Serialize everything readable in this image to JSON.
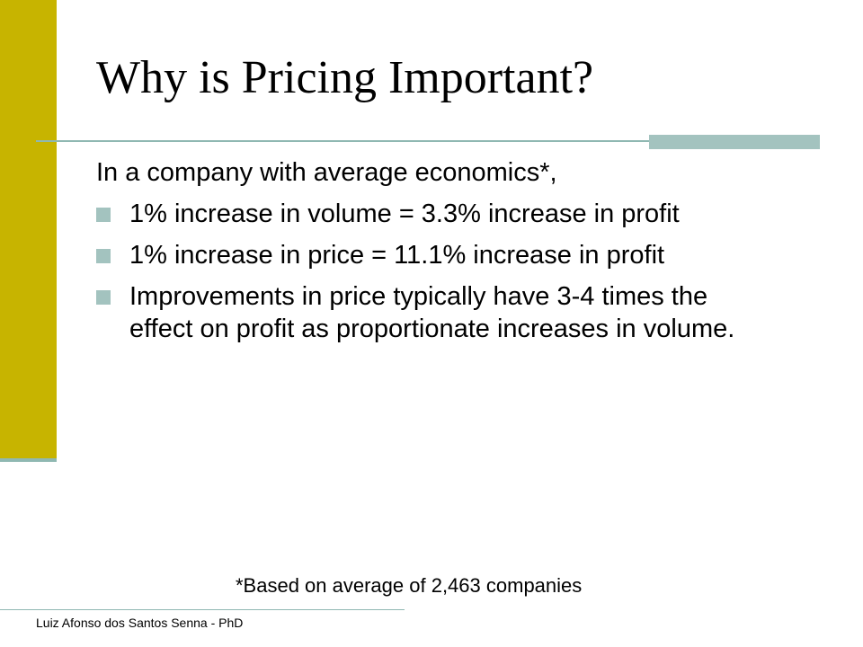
{
  "slide": {
    "title": "Why is Pricing Important?",
    "intro": "In a company with average economics*,",
    "bullets": [
      "1% increase in volume = 3.3% increase in profit",
      "1% increase in price = 11.1% increase in profit",
      "Improvements in price typically have 3-4 times the effect on profit as proportionate increases in volume."
    ],
    "footnote": "*Based on average of 2,463 companies",
    "author": "Luiz Afonso dos Santos Senna - PhD"
  },
  "theme": {
    "accent_bar_color": "#c7b400",
    "rule_color": "#8fb8b2",
    "bullet_color": "#a3c3bf",
    "bullet_icon": "square-bullet-icon"
  }
}
